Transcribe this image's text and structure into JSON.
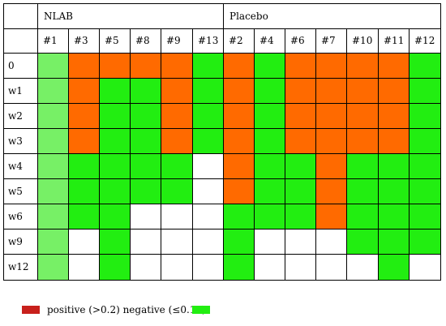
{
  "colors": {
    "positive": "#ff6a00",
    "negative": "#22ee11",
    "first_col": "#77f066",
    "empty": "#ffffff",
    "positive_swatch": "#c8201c",
    "negative_swatch": "#22ee11"
  },
  "groups": [
    {
      "label": "NLAB",
      "span": 6
    },
    {
      "label": "Placebo",
      "span": 7
    }
  ],
  "columns": [
    "#1",
    "#3",
    "#5",
    "#8",
    "#9",
    "#13",
    "#2",
    "#4",
    "#6",
    "#7",
    "#10",
    "#11",
    "#12"
  ],
  "rows": [
    {
      "label": "0",
      "cells": [
        "N",
        "P",
        "P",
        "P",
        "P",
        "N",
        "P",
        "N",
        "P",
        "P",
        "P",
        "P",
        "N"
      ]
    },
    {
      "label": "w1",
      "cells": [
        "N",
        "P",
        "N",
        "N",
        "P",
        "N",
        "P",
        "N",
        "P",
        "P",
        "P",
        "P",
        "N"
      ]
    },
    {
      "label": "w2",
      "cells": [
        "N",
        "P",
        "N",
        "N",
        "P",
        "N",
        "P",
        "N",
        "P",
        "P",
        "P",
        "P",
        "N"
      ]
    },
    {
      "label": "w3",
      "cells": [
        "N",
        "P",
        "N",
        "N",
        "P",
        "N",
        "P",
        "N",
        "P",
        "P",
        "P",
        "P",
        "N"
      ]
    },
    {
      "label": "w4",
      "cells": [
        "N",
        "N",
        "N",
        "N",
        "N",
        "E",
        "P",
        "N",
        "N",
        "P",
        "N",
        "N",
        "N"
      ]
    },
    {
      "label": "w5",
      "cells": [
        "N",
        "N",
        "N",
        "N",
        "N",
        "E",
        "P",
        "N",
        "N",
        "P",
        "N",
        "N",
        "N"
      ]
    },
    {
      "label": "w6",
      "cells": [
        "N",
        "N",
        "N",
        "E",
        "E",
        "E",
        "N",
        "N",
        "N",
        "P",
        "N",
        "N",
        "N"
      ]
    },
    {
      "label": "w9",
      "cells": [
        "N",
        "E",
        "N",
        "E",
        "E",
        "E",
        "N",
        "E",
        "E",
        "E",
        "N",
        "N",
        "N"
      ]
    },
    {
      "label": "w12",
      "cells": [
        "N",
        "E",
        "N",
        "E",
        "E",
        "E",
        "N",
        "E",
        "E",
        "E",
        "E",
        "N",
        "E"
      ]
    }
  ],
  "legend": {
    "text": "positive (>0.2) negative (≤0.19)"
  }
}
